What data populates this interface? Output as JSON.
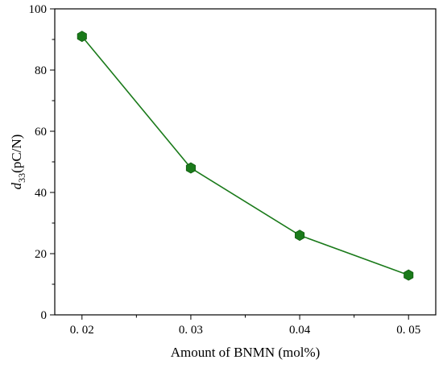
{
  "chart_data": {
    "type": "line",
    "title": "",
    "xlabel": "Amount of BNMN (mol%)",
    "ylabel": {
      "var": "d",
      "sub": "33",
      "unit": "(pC/N)"
    },
    "x_ticks": [
      0.02,
      0.03,
      0.04,
      0.05
    ],
    "x_tick_labels": [
      "0. 02",
      "0. 03",
      "0.04",
      "0. 05"
    ],
    "xlim": [
      0.0175,
      0.0525
    ],
    "ylim": [
      0,
      100
    ],
    "y_ticks": [
      0,
      20,
      40,
      60,
      80,
      100
    ],
    "grid": false,
    "legend": "none",
    "series": [
      {
        "color": "#1a7a1a",
        "marker": "hexagon",
        "x": [
          0.02,
          0.03,
          0.04,
          0.05
        ],
        "y": [
          91,
          48,
          26,
          13
        ]
      }
    ]
  }
}
